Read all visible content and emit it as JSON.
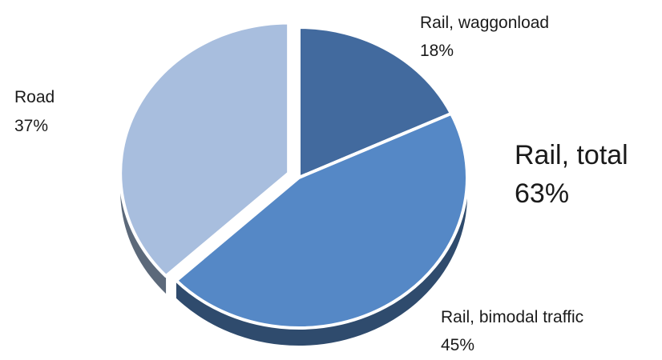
{
  "chart_data": {
    "type": "pie",
    "title": "",
    "start_angle_deg": -90,
    "direction": "clockwise",
    "slices": [
      {
        "label": "Rail, waggonload",
        "value": 18,
        "value_label": "18%",
        "color": "#426a9e",
        "exploded": false
      },
      {
        "label": "Rail, bimodal traffic",
        "value": 45,
        "value_label": "45%",
        "color": "#5588c6",
        "exploded": false
      },
      {
        "label": "Road",
        "value": 37,
        "value_label": "37%",
        "color": "#a8bede",
        "exploded": true
      }
    ],
    "annotations": [
      {
        "line1": "Rail, total",
        "line2": "63%"
      }
    ],
    "style": "3d-exploded"
  }
}
